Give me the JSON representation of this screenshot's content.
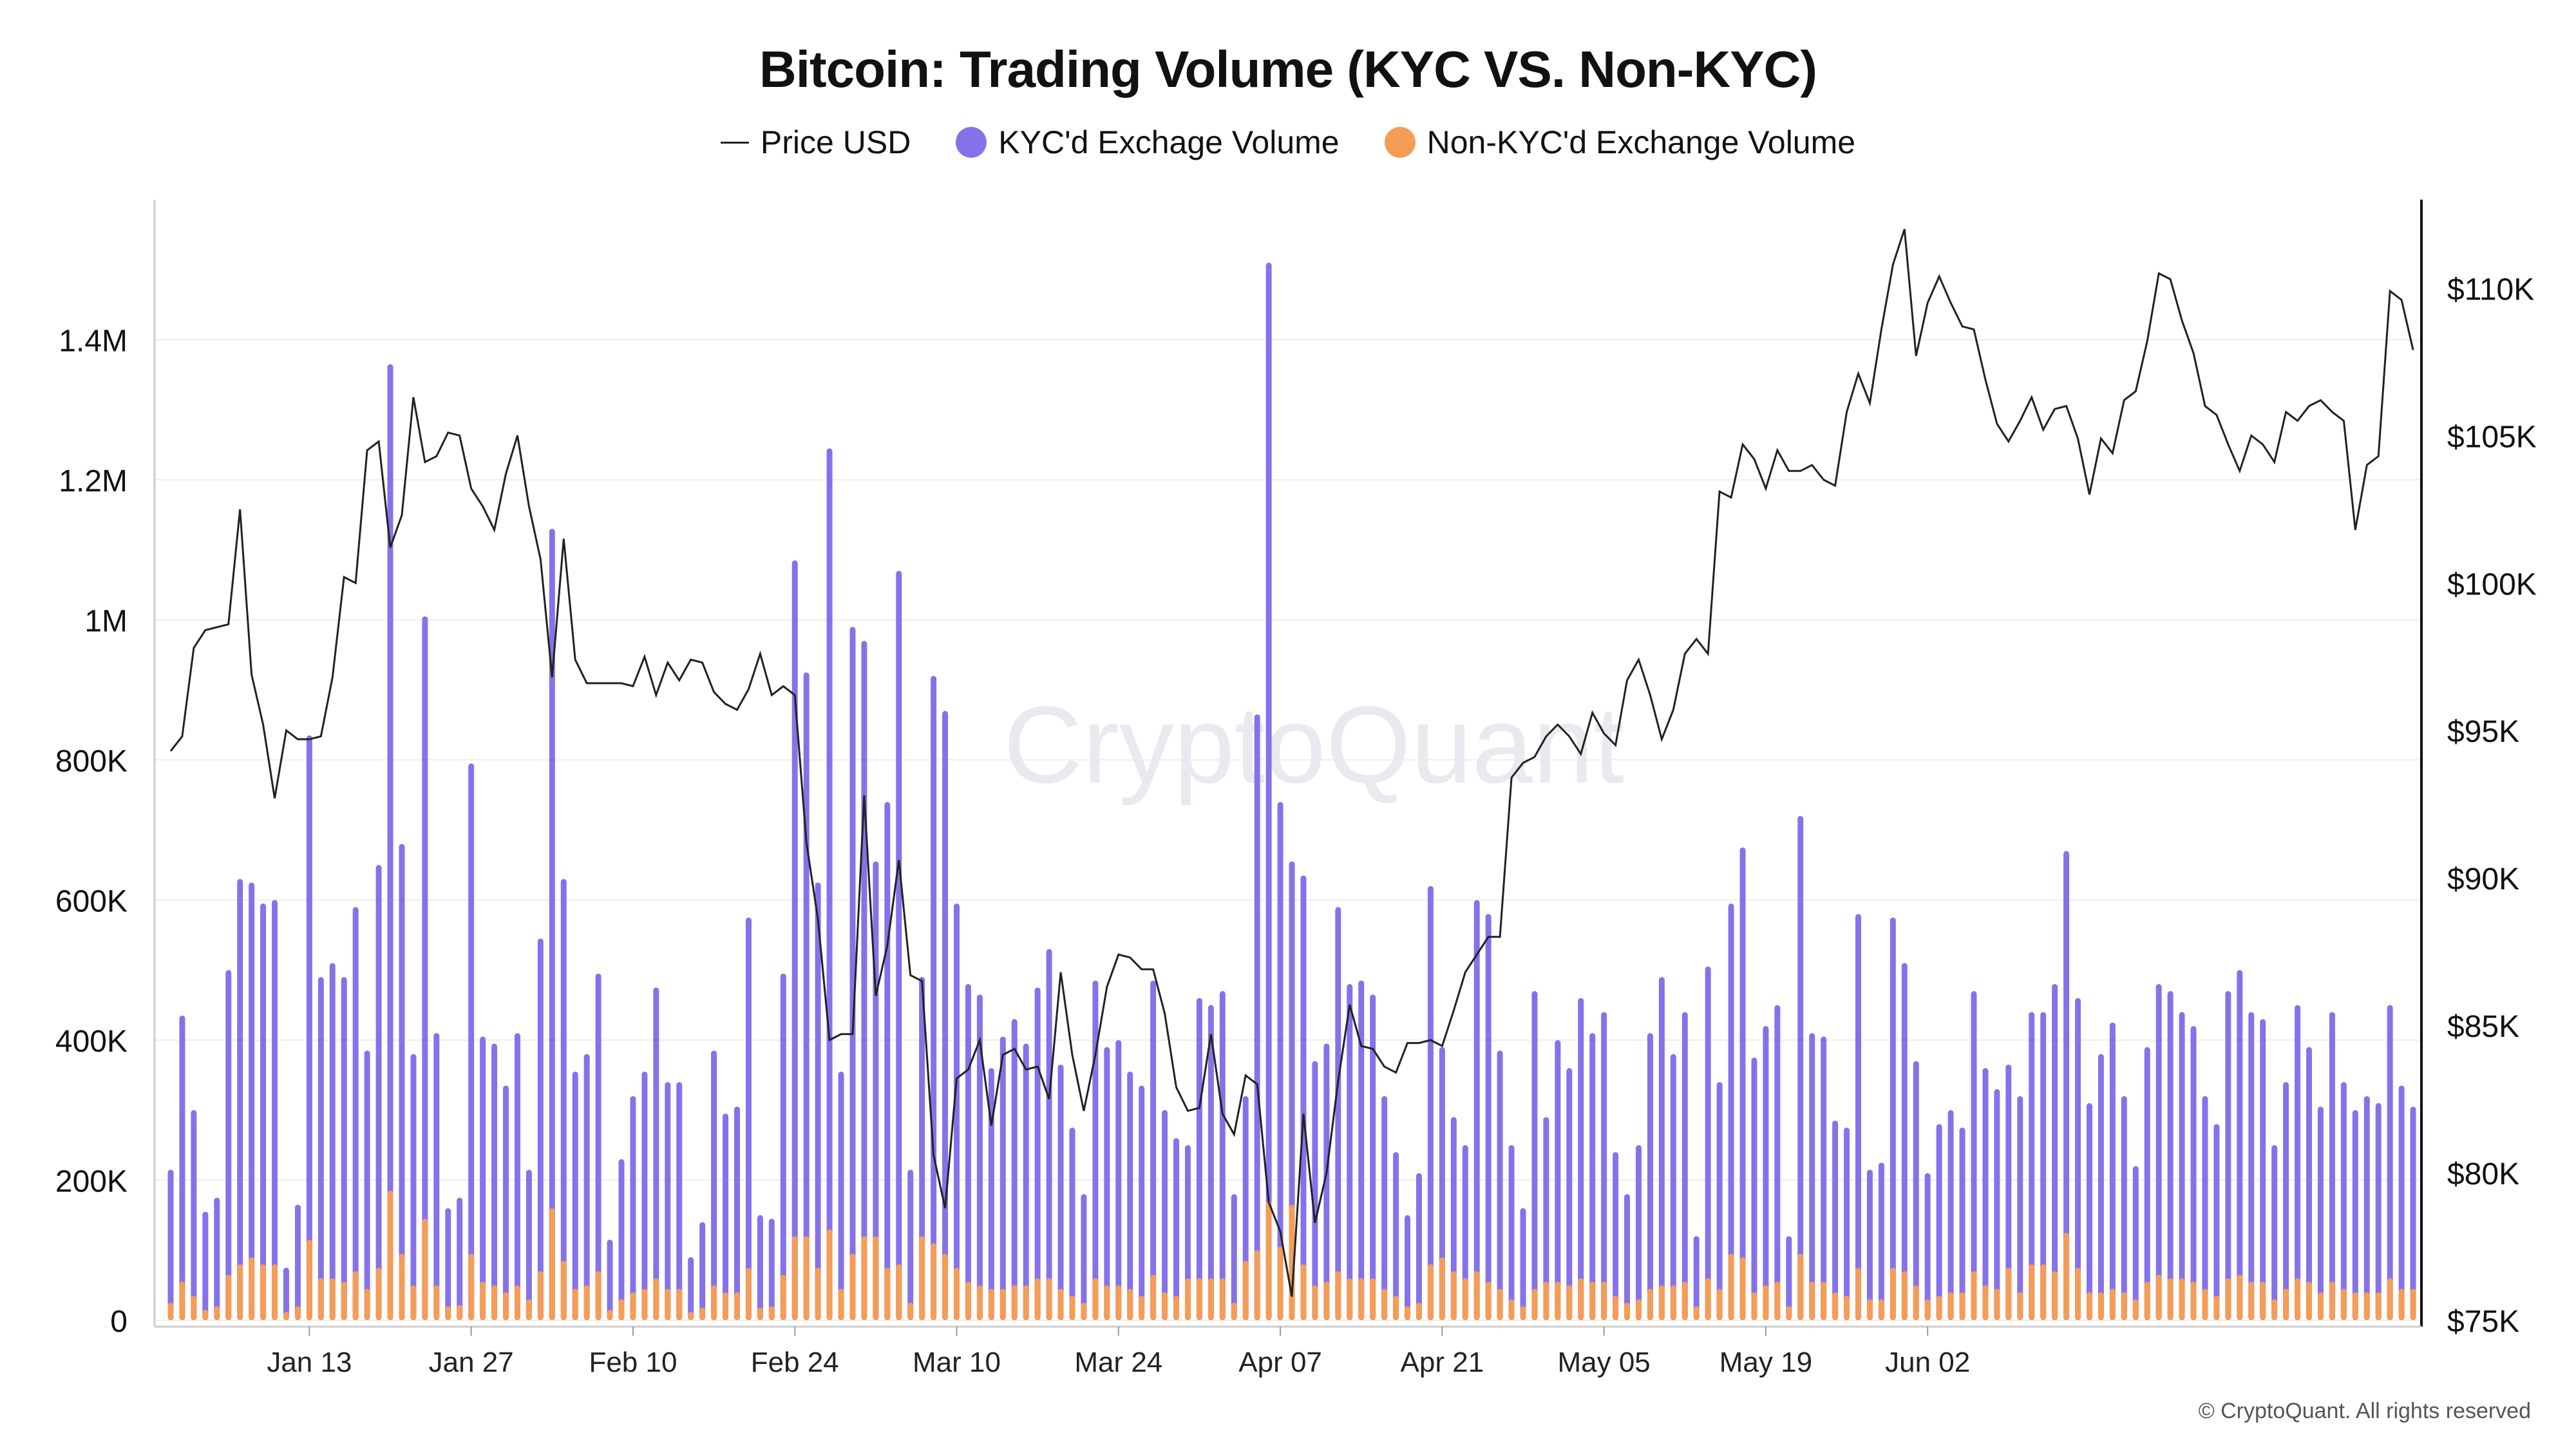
{
  "title": "Bitcoin: Trading Volume (KYC VS. Non-KYC)",
  "legend": {
    "price": "Price USD",
    "kyc": "KYC'd Exchage Volume",
    "nonkyc": "Non-KYC'd Exchange Volume"
  },
  "watermark": "CryptoQuant",
  "credit": "© CryptoQuant. All rights reserved",
  "colors": {
    "kyc": "#8572ea",
    "nonkyc": "#f59c57",
    "price": "#222222",
    "grid": "#eeeeee"
  },
  "chart_data": {
    "type": "bar",
    "x_start": "Jan 01",
    "x_ticks": [
      "Jan 13",
      "Jan 27",
      "Feb 10",
      "Feb 24",
      "Mar 10",
      "Mar 24",
      "Apr 07",
      "Apr 21",
      "May 05",
      "May 19",
      "Jun 02"
    ],
    "y_left": {
      "ticks": [
        0,
        200000,
        400000,
        600000,
        800000,
        1000000,
        1200000,
        1400000
      ],
      "tick_labels": [
        "0",
        "200K",
        "400K",
        "600K",
        "800K",
        "1M",
        "1.2M",
        "1.4M"
      ],
      "range": [
        0,
        1600000
      ]
    },
    "y_right": {
      "ticks": [
        75000,
        80000,
        85000,
        90000,
        95000,
        100000,
        105000,
        110000
      ],
      "tick_labels": [
        "$75K",
        "$80K",
        "$85K",
        "$90K",
        "$95K",
        "$100K",
        "$105K",
        "$110K"
      ],
      "range": [
        75000,
        113000
      ]
    },
    "series": [
      {
        "name": "KYC'd Exchage Volume",
        "values": [
          215000,
          435000,
          300000,
          155000,
          175000,
          500000,
          630000,
          625000,
          595000,
          600000,
          75000,
          165000,
          835000,
          490000,
          510000,
          490000,
          590000,
          385000,
          650000,
          1365000,
          680000,
          380000,
          1005000,
          410000,
          160000,
          175000,
          795000,
          405000,
          395000,
          335000,
          410000,
          215000,
          545000,
          1130000,
          630000,
          355000,
          380000,
          495000,
          115000,
          230000,
          320000,
          355000,
          475000,
          340000,
          340000,
          90000,
          140000,
          385000,
          295000,
          305000,
          575000,
          150000,
          145000,
          495000,
          1085000,
          925000,
          625000,
          1245000,
          355000,
          990000,
          970000,
          655000,
          740000,
          1070000,
          215000,
          490000,
          920000,
          870000,
          595000,
          480000,
          465000,
          360000,
          405000,
          430000,
          395000,
          475000,
          530000,
          365000,
          275000,
          180000,
          485000,
          390000,
          400000,
          355000,
          335000,
          485000,
          300000,
          260000,
          250000,
          460000,
          450000,
          470000,
          180000,
          320000,
          865000,
          1510000,
          740000,
          655000,
          635000,
          370000,
          395000,
          590000,
          480000,
          485000,
          465000,
          320000,
          240000,
          150000,
          210000,
          620000,
          390000,
          290000,
          250000,
          600000,
          580000,
          385000,
          250000,
          160000,
          470000,
          290000,
          400000,
          360000,
          460000,
          410000,
          440000,
          240000,
          180000,
          250000,
          410000,
          490000,
          380000,
          440000,
          120000,
          505000,
          340000,
          595000,
          675000,
          375000,
          420000,
          450000,
          120000,
          720000,
          410000,
          405000,
          285000,
          275000,
          580000,
          215000,
          225000,
          575000,
          510000,
          370000,
          210000,
          280000,
          300000,
          275000,
          470000,
          360000,
          330000,
          365000,
          320000,
          440000,
          440000,
          480000,
          670000,
          460000,
          310000,
          380000,
          425000,
          320000,
          220000,
          390000,
          480000,
          470000,
          440000,
          420000,
          320000,
          280000,
          470000,
          500000,
          440000,
          430000,
          250000,
          340000,
          450000,
          390000,
          305000,
          440000,
          340000,
          300000,
          320000,
          310000,
          450000,
          335000,
          305000
        ]
      },
      {
        "name": "Non-KYC'd Exchange Volume",
        "values": [
          25000,
          55000,
          35000,
          15000,
          20000,
          65000,
          80000,
          90000,
          80000,
          80000,
          12000,
          20000,
          115000,
          60000,
          60000,
          55000,
          70000,
          45000,
          75000,
          185000,
          95000,
          50000,
          145000,
          50000,
          20000,
          22000,
          95000,
          55000,
          50000,
          40000,
          50000,
          30000,
          70000,
          160000,
          85000,
          45000,
          50000,
          70000,
          15000,
          30000,
          40000,
          45000,
          60000,
          45000,
          45000,
          12000,
          18000,
          50000,
          40000,
          40000,
          75000,
          18000,
          20000,
          65000,
          120000,
          120000,
          75000,
          130000,
          45000,
          95000,
          120000,
          120000,
          75000,
          80000,
          25000,
          120000,
          110000,
          95000,
          75000,
          55000,
          50000,
          45000,
          45000,
          50000,
          50000,
          60000,
          60000,
          45000,
          35000,
          25000,
          60000,
          50000,
          50000,
          45000,
          35000,
          65000,
          40000,
          35000,
          60000,
          60000,
          60000,
          60000,
          25000,
          85000,
          100000,
          170000,
          105000,
          165000,
          80000,
          50000,
          55000,
          70000,
          60000,
          60000,
          60000,
          45000,
          35000,
          20000,
          25000,
          80000,
          90000,
          70000,
          60000,
          70000,
          55000,
          45000,
          30000,
          20000,
          45000,
          55000,
          55000,
          50000,
          60000,
          55000,
          55000,
          35000,
          25000,
          30000,
          45000,
          50000,
          50000,
          55000,
          20000,
          60000,
          45000,
          95000,
          90000,
          40000,
          50000,
          55000,
          20000,
          95000,
          55000,
          55000,
          40000,
          35000,
          75000,
          30000,
          30000,
          75000,
          70000,
          50000,
          30000,
          35000,
          40000,
          40000,
          70000,
          50000,
          45000,
          75000,
          40000,
          80000,
          80000,
          70000,
          125000,
          75000,
          40000,
          40000,
          45000,
          40000,
          30000,
          55000,
          65000,
          60000,
          60000,
          55000,
          45000,
          35000,
          60000,
          65000,
          55000,
          55000,
          30000,
          45000,
          60000,
          55000,
          40000,
          55000,
          45000,
          40000,
          40000,
          40000,
          60000,
          45000,
          45000
        ]
      },
      {
        "name": "Price USD",
        "values": [
          94300,
          94800,
          97800,
          98400,
          98500,
          98600,
          102500,
          96900,
          95200,
          92700,
          95000,
          94700,
          94700,
          94800,
          96800,
          100200,
          100000,
          104500,
          104800,
          101200,
          102300,
          106300,
          104100,
          104300,
          105100,
          105000,
          103200,
          102600,
          101800,
          103700,
          105000,
          102600,
          100800,
          96800,
          101500,
          97400,
          96600,
          96600,
          96600,
          96600,
          96500,
          97500,
          96200,
          97300,
          96700,
          97400,
          97300,
          96300,
          95900,
          95700,
          96400,
          97600,
          96200,
          96500,
          96200,
          91200,
          88600,
          84500,
          84700,
          84700,
          92800,
          86000,
          87700,
          90600,
          86700,
          86500,
          80600,
          78800,
          83200,
          83500,
          84500,
          81600,
          84000,
          84200,
          83500,
          83600,
          82500,
          86800,
          84000,
          82100,
          84000,
          86300,
          87400,
          87300,
          86900,
          86900,
          85400,
          82900,
          82100,
          82200,
          84700,
          82000,
          81300,
          83300,
          83000,
          79000,
          78000,
          75800,
          82000,
          78300,
          80000,
          83100,
          85700,
          84300,
          84200,
          83600,
          83400,
          84400,
          84400,
          84500,
          84300,
          85500,
          86800,
          87400,
          88000,
          88000,
          93400,
          93900,
          94100,
          94800,
          95200,
          94800,
          94200,
          95600,
          94900,
          94500,
          96700,
          97400,
          96200,
          94700,
          95700,
          97600,
          98100,
          97600,
          103100,
          102900,
          104700,
          104200,
          103200,
          104500,
          103800,
          103800,
          104000,
          103500,
          103300,
          105800,
          107100,
          106100,
          108600,
          110800,
          112000,
          107700,
          109500,
          110400,
          109500,
          108700,
          108600,
          106900,
          105400,
          104800,
          105500,
          106300,
          105200,
          105900,
          106000,
          104900,
          103000,
          104900,
          104400,
          106200,
          106500,
          108200,
          110500,
          110300,
          108900,
          107800,
          106000,
          105700,
          104700,
          103800,
          105000,
          104700,
          104100,
          105800,
          105500,
          106000,
          106200,
          105800,
          105500,
          101800,
          104000,
          104300,
          109900,
          109600,
          107900
        ]
      }
    ],
    "grid": true,
    "legend_position": "top-center"
  }
}
